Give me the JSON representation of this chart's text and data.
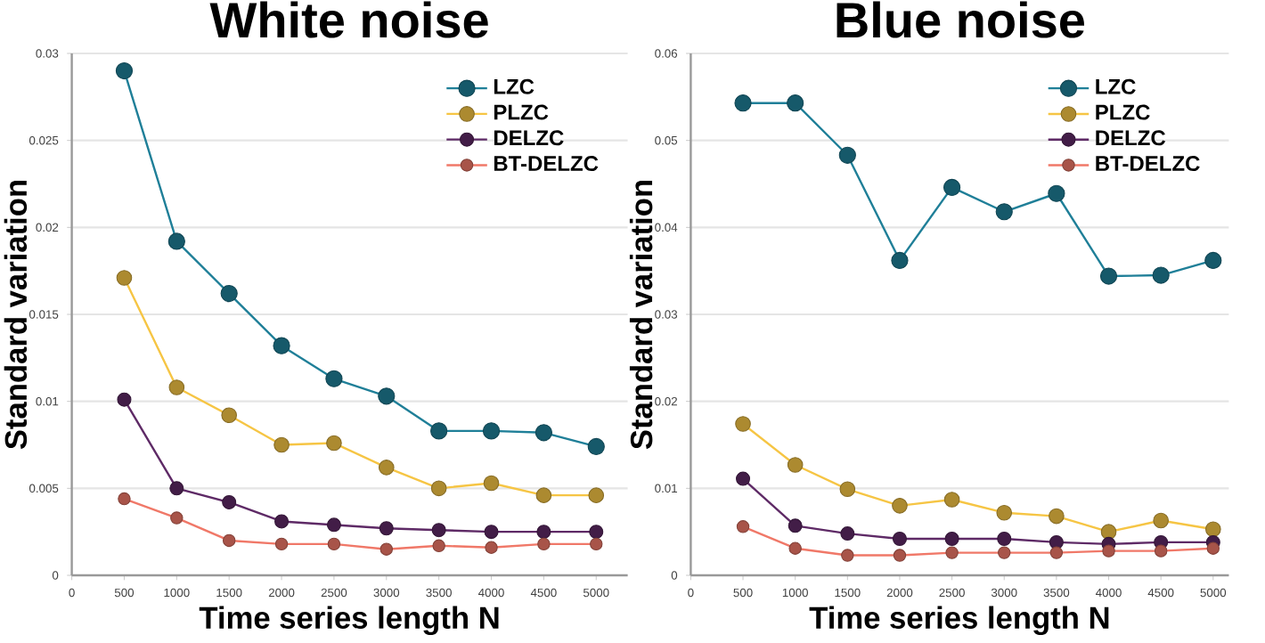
{
  "chart_data": [
    {
      "type": "line",
      "title": "White noise",
      "xlabel": "Time series length N",
      "ylabel": "Standard variation",
      "x": [
        500,
        1000,
        1500,
        2000,
        2500,
        3000,
        3500,
        4000,
        4500,
        5000
      ],
      "xlim": [
        0,
        5300
      ],
      "xticks": [
        0,
        500,
        1000,
        1500,
        2000,
        2500,
        3000,
        3500,
        4000,
        4500,
        5000
      ],
      "ylim": [
        0,
        0.03
      ],
      "yticks": [
        0,
        0.005,
        0.01,
        0.015,
        0.02,
        0.025,
        0.03
      ],
      "grid": "y",
      "legend": "top right",
      "marker": "circle",
      "series": [
        {
          "name": "LZC",
          "color": "#1f7f98",
          "values": [
            0.029,
            0.0192,
            0.0162,
            0.0132,
            0.0113,
            0.0103,
            0.0083,
            0.0083,
            0.0082,
            0.0074
          ]
        },
        {
          "name": "PLZC",
          "color": "#f6c544",
          "values": [
            0.0171,
            0.0108,
            0.0092,
            0.0075,
            0.0076,
            0.0062,
            0.005,
            0.0053,
            0.0046,
            0.0046
          ]
        },
        {
          "name": "DELZC",
          "color": "#5e2a66",
          "values": [
            0.0101,
            0.005,
            0.0042,
            0.0031,
            0.0029,
            0.0027,
            0.0026,
            0.0025,
            0.0025,
            0.0025
          ]
        },
        {
          "name": "BT-DELZC",
          "color": "#f07868",
          "values": [
            0.0044,
            0.0033,
            0.002,
            0.0018,
            0.0018,
            0.0015,
            0.0017,
            0.0016,
            0.0018,
            0.0018
          ]
        }
      ]
    },
    {
      "type": "line",
      "title": "Blue noise",
      "xlabel": "Time series length N",
      "ylabel": "Standard variation",
      "x": [
        500,
        1000,
        1500,
        2000,
        2500,
        3000,
        3500,
        4000,
        4500,
        5000
      ],
      "xlim": [
        0,
        5150
      ],
      "xticks": [
        0,
        500,
        1000,
        1500,
        2000,
        2500,
        3000,
        3500,
        4000,
        4500,
        5000
      ],
      "ylim": [
        0,
        0.06
      ],
      "yticks": [
        0,
        0.01,
        0.02,
        0.03,
        0.04,
        0.05,
        0.06
      ],
      "grid": "y",
      "legend": "top right",
      "marker": "circle",
      "series": [
        {
          "name": "LZC",
          "color": "#1f7f98",
          "values": [
            0.0543,
            0.0543,
            0.0483,
            0.0362,
            0.0446,
            0.0418,
            0.0439,
            0.0344,
            0.0345,
            0.0362
          ]
        },
        {
          "name": "PLZC",
          "color": "#f6c544",
          "values": [
            0.0174,
            0.0127,
            0.0099,
            0.008,
            0.0087,
            0.0072,
            0.0068,
            0.005,
            0.0063,
            0.0053
          ]
        },
        {
          "name": "DELZC",
          "color": "#5e2a66",
          "values": [
            0.0111,
            0.0057,
            0.0048,
            0.0042,
            0.0042,
            0.0042,
            0.0038,
            0.0036,
            0.0038,
            0.0038
          ]
        },
        {
          "name": "BT-DELZC",
          "color": "#f07868",
          "values": [
            0.0056,
            0.0031,
            0.0023,
            0.0023,
            0.0026,
            0.0026,
            0.0026,
            0.0028,
            0.0028,
            0.0031
          ]
        }
      ]
    }
  ]
}
